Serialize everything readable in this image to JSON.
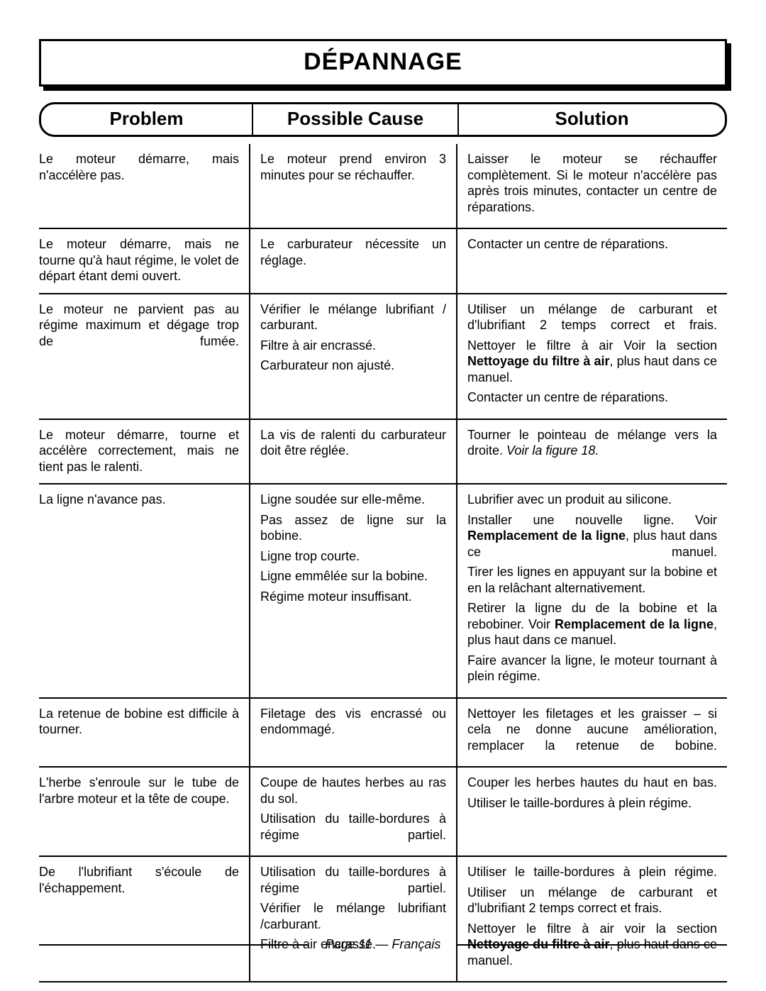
{
  "title": "DÉPANNAGE",
  "columns": {
    "problem": "Problem",
    "cause": "Possible Cause",
    "solution": "Solution"
  },
  "footer": "Page 11  — Français",
  "rows": [
    {
      "problem": "Le moteur démarre, mais n'accélère pas.",
      "pairs": [
        {
          "cause": "Le moteur prend environ 3 minutes pour se réchauffer.",
          "solution": "Laisser le moteur se réchauffer complètement. Si le moteur n'accélère pas après trois minutes, contacter un centre de réparations."
        }
      ]
    },
    {
      "problem": "Le moteur démarre, mais ne tourne qu'à haut régime, le volet de départ étant demi ouvert.",
      "pairs": [
        {
          "cause": "Le carburateur nécessite un réglage.",
          "solution": "Contacter un centre de réparations."
        }
      ]
    },
    {
      "problem": "Le moteur ne parvient pas au régime maximum et dégage trop de fumée.",
      "pairs": [
        {
          "cause": "Vérifier le mélange lubrifiant / carburant.",
          "solution": "Utiliser un mélange de carburant et d'lubrifiant 2 temps correct et frais."
        },
        {
          "cause": "Filtre à air encrassé.",
          "solution_parts": [
            {
              "t": "Nettoyer le filtre à air  Voir la section "
            },
            {
              "t": "Nettoyage du filtre à air",
              "b": true
            },
            {
              "t": ", plus haut dans ce manuel."
            }
          ]
        },
        {
          "cause": "Carburateur non ajusté.",
          "solution": "Contacter un centre de réparations."
        }
      ]
    },
    {
      "problem": "Le moteur démarre, tourne et accélère correctement, mais ne tient pas le ralenti.",
      "pairs": [
        {
          "cause": "La vis de ralenti du carburateur doit être réglée.",
          "solution_parts": [
            {
              "t": "Tourner le pointeau de mélange vers la droite. "
            },
            {
              "t": "Voir la figure 18.",
              "i": true
            }
          ]
        }
      ]
    },
    {
      "problem": "La ligne n'avance pas.",
      "pairs": [
        {
          "cause": "Ligne soudée sur elle-même.",
          "solution": "Lubrifier avec un produit au silicone."
        },
        {
          "cause": "Pas assez de ligne sur la bobine.",
          "solution_parts": [
            {
              "t": "Installer une nouvelle ligne. Voir "
            },
            {
              "t": "Remplacement de la ligne",
              "b": true
            },
            {
              "t": ", plus haut dans ce manuel."
            }
          ]
        },
        {
          "cause": "Ligne trop courte.",
          "solution": "Tirer les lignes en appuyant sur la bobine et en la relâchant alternativement."
        },
        {
          "cause": "Ligne emmêlée sur la bobine.",
          "solution_parts": [
            {
              "t": "Retirer la ligne du de la bobine et la rebobiner. Voir "
            },
            {
              "t": "Remplacement de la ligne",
              "b": true
            },
            {
              "t": ", plus haut dans ce manuel."
            }
          ]
        },
        {
          "cause": "Régime moteur insuffisant.",
          "solution": "Faire avancer la ligne, le moteur tournant à plein régime."
        }
      ]
    },
    {
      "problem": "La retenue de bobine est difficile à tourner.",
      "pairs": [
        {
          "cause": "Filetage des vis encrassé ou endommagé.",
          "solution": "Nettoyer les filetages et les graisser – si cela ne donne aucune amélioration, remplacer la retenue de bobine."
        }
      ]
    },
    {
      "problem": "L'herbe s'enroule sur le tube de l'arbre moteur et la tête de coupe.",
      "pairs": [
        {
          "cause": "Coupe de hautes herbes au ras du sol.",
          "solution": "Couper les herbes hautes du haut en bas."
        },
        {
          "cause": "Utilisation du taille-bordures à régime partiel.",
          "solution": "Utiliser le taille-bordures à plein régime."
        }
      ]
    },
    {
      "problem": "De l'lubrifiant s'écoule de l'échappement.",
      "pairs": [
        {
          "cause": "Utilisation du taille-bordures à régime partiel.",
          "solution": "Utiliser le taille-bordures à plein régime."
        },
        {
          "cause": "Vérifier le mélange lubrifiant /carburant.",
          "solution": "Utiliser un mélange de carburant et d'lubrifiant 2 temps correct et frais."
        },
        {
          "cause": "Filtre à air encrassé.",
          "solution_parts": [
            {
              "t": "Nettoyer le filtre à air voir la section "
            },
            {
              "t": "Nettoyage du filtre à air",
              "b": true
            },
            {
              "t": ", plus haut dans ce manuel."
            }
          ]
        }
      ]
    }
  ],
  "spread_problems": [
    2,
    7
  ],
  "spread_causes": [
    "5-0",
    "6-1",
    "7-0"
  ],
  "spread_solutions": [
    "0-0",
    "2-0",
    "4-1",
    "5-0",
    "6-0",
    "7-0",
    "7-2"
  ]
}
